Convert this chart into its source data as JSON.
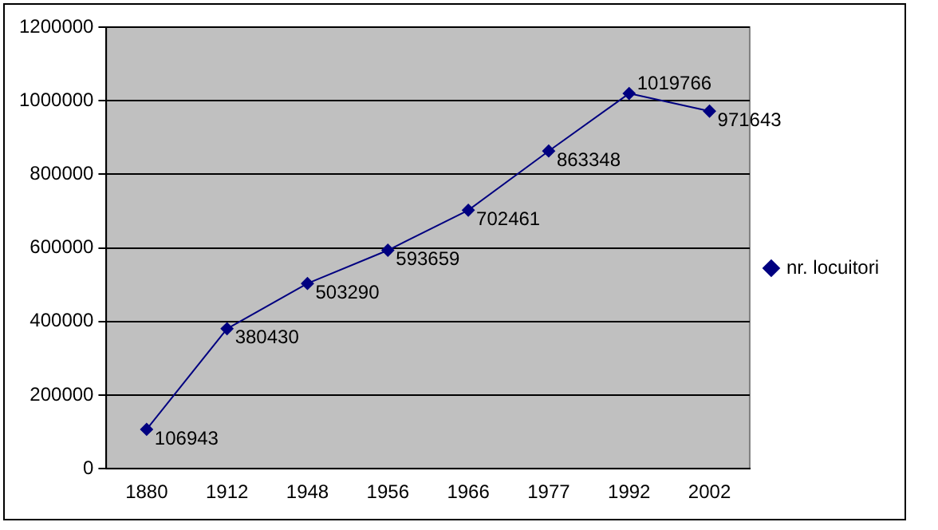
{
  "chart_data": {
    "type": "line",
    "categories": [
      "1880",
      "1912",
      "1948",
      "1956",
      "1966",
      "1977",
      "1992",
      "2002"
    ],
    "series": [
      {
        "name": "nr. locuitori",
        "color": "#000080",
        "values": [
          106943,
          380430,
          503290,
          593659,
          702461,
          863348,
          1019766,
          971643
        ]
      }
    ],
    "ylim": [
      0,
      1200000
    ],
    "yticks": [
      0,
      200000,
      400000,
      600000,
      800000,
      1000000,
      1200000
    ],
    "grid": "y",
    "legend": "right",
    "marker": "diamond",
    "line_style": "solid",
    "data_labels": true
  }
}
